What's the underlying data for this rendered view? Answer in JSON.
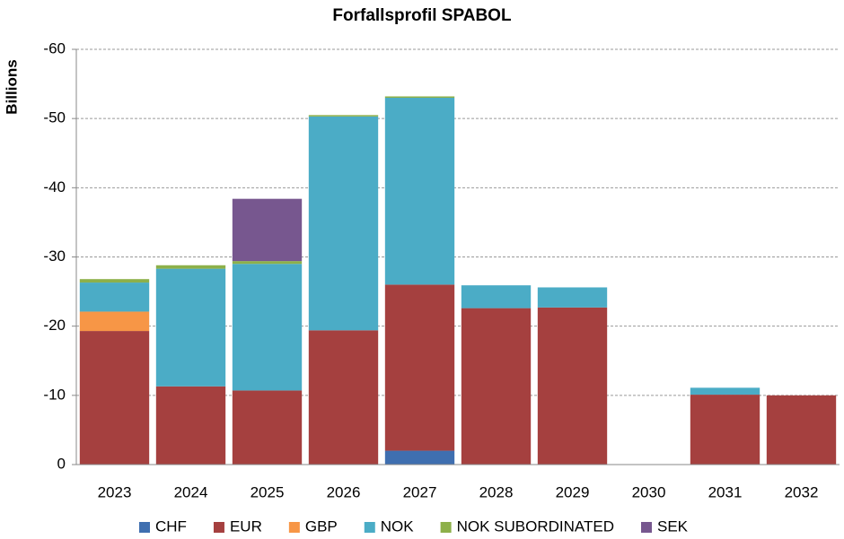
{
  "chart_data": {
    "type": "stacked_bar",
    "title": "Forfallsprofil SPABOL",
    "y_label": "Billions",
    "categories": [
      "2023",
      "2024",
      "2025",
      "2026",
      "2027",
      "2028",
      "2029",
      "2030",
      "2031",
      "2032"
    ],
    "series": [
      {
        "name": "CHF",
        "color": "#3f6fb0",
        "values": [
          0,
          0,
          0,
          0,
          -2.0,
          0,
          0,
          0,
          0,
          0
        ]
      },
      {
        "name": "EUR",
        "color": "#a5403f",
        "values": [
          -19.3,
          -11.3,
          -10.7,
          -19.4,
          -24.0,
          -22.6,
          -22.7,
          0,
          -10.1,
          -10.0
        ]
      },
      {
        "name": "GBP",
        "color": "#f79646",
        "values": [
          -2.8,
          0,
          0,
          0,
          0,
          0,
          0,
          0,
          0,
          0
        ]
      },
      {
        "name": "NOK",
        "color": "#4bacc6",
        "values": [
          -4.2,
          -17.0,
          -18.3,
          -30.9,
          -27.0,
          -3.3,
          -2.9,
          0,
          -1.0,
          0
        ]
      },
      {
        "name": "NOK SUBORDINATED",
        "color": "#8db04a",
        "values": [
          -0.5,
          -0.5,
          -0.4,
          -0.2,
          -0.2,
          0,
          0,
          0,
          0,
          0
        ]
      },
      {
        "name": "SEK",
        "color": "#77578f",
        "values": [
          0,
          0,
          -9.0,
          0,
          0,
          0,
          0,
          0,
          0,
          0
        ]
      }
    ],
    "ylim": [
      0,
      -60
    ],
    "yticks": [
      0,
      -10,
      -20,
      -30,
      -40,
      -50,
      -60
    ],
    "grid": true,
    "legend": "bottom"
  }
}
